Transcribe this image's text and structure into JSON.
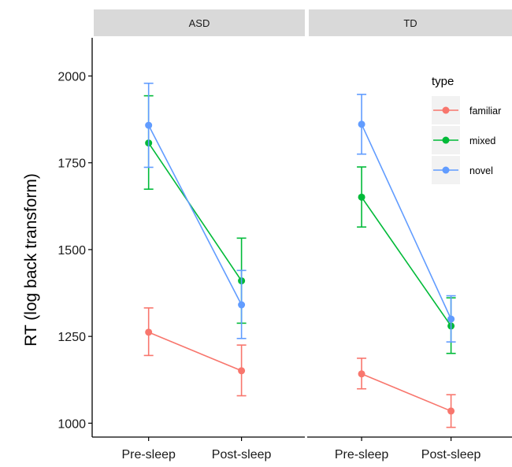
{
  "chart_data": {
    "type": "line",
    "ylabel": "RT (log back transform)",
    "ylim": [
      960,
      2110
    ],
    "yticks": [
      1000,
      1250,
      1500,
      1750,
      2000
    ],
    "categories": [
      "Pre-sleep",
      "Post-sleep"
    ],
    "legend": {
      "title": "type",
      "placement": "right, inside TD panel",
      "entries": [
        "familiar",
        "mixed",
        "novel"
      ]
    },
    "colors": {
      "familiar": "#F8766D",
      "mixed": "#00BA38",
      "novel": "#619CFF"
    },
    "grid": false,
    "panels": [
      {
        "label": "ASD",
        "series": [
          {
            "name": "familiar",
            "values": [
              1262,
              1151
            ],
            "lower": [
              1195,
              1079
            ],
            "upper": [
              1332,
              1225
            ]
          },
          {
            "name": "mixed",
            "values": [
              1807,
              1410
            ],
            "lower": [
              1674,
              1288
            ],
            "upper": [
              1943,
              1533
            ]
          },
          {
            "name": "novel",
            "values": [
              1858,
              1341
            ],
            "lower": [
              1737,
              1244
            ],
            "upper": [
              1979,
              1440
            ]
          }
        ]
      },
      {
        "label": "TD",
        "series": [
          {
            "name": "familiar",
            "values": [
              1142,
              1035
            ],
            "lower": [
              1099,
              988
            ],
            "upper": [
              1187,
              1082
            ]
          },
          {
            "name": "mixed",
            "values": [
              1651,
              1280
            ],
            "lower": [
              1565,
              1201
            ],
            "upper": [
              1738,
              1361
            ]
          },
          {
            "name": "novel",
            "values": [
              1861,
              1300
            ],
            "lower": [
              1775,
              1234
            ],
            "upper": [
              1947,
              1367
            ]
          }
        ]
      }
    ]
  }
}
